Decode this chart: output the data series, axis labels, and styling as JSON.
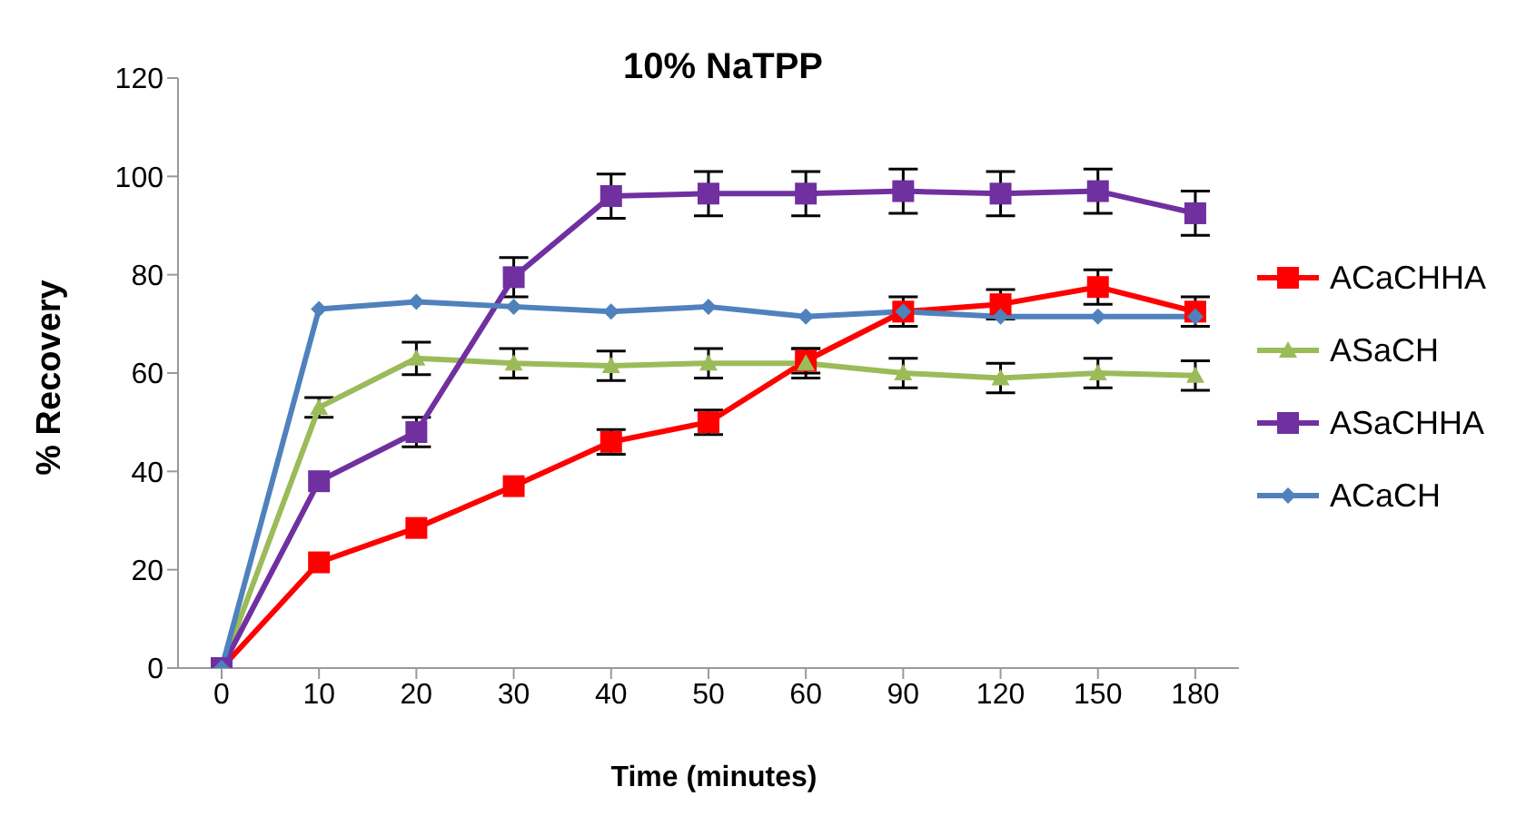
{
  "chart_data": {
    "type": "line",
    "title": "10% NaTPP",
    "xlabel": "Time (minutes)",
    "ylabel": "% Recovery",
    "categories": [
      "0",
      "10",
      "20",
      "30",
      "40",
      "50",
      "60",
      "90",
      "120",
      "150",
      "180"
    ],
    "ylim": [
      0,
      120
    ],
    "yticks": [
      0,
      20,
      40,
      60,
      80,
      100,
      120
    ],
    "grid": false,
    "legend": "right",
    "series": [
      {
        "name": "ACaCHHA",
        "color": "#ff0000",
        "marker": "square",
        "values": [
          0,
          21.5,
          28.5,
          37,
          46,
          50,
          62.5,
          72.5,
          74,
          77.5,
          72.5
        ],
        "errors": [
          null,
          null,
          null,
          null,
          2.5,
          2.5,
          2.5,
          3,
          3,
          3.5,
          3
        ]
      },
      {
        "name": "ASaCH",
        "color": "#9bbb59",
        "marker": "triangle",
        "values": [
          0,
          53,
          63,
          62,
          61.5,
          62,
          62,
          60,
          59,
          60,
          59.5
        ],
        "errors": [
          null,
          2,
          3.3,
          3,
          3,
          3,
          3,
          3,
          3,
          3,
          3
        ]
      },
      {
        "name": "ASaCHHA",
        "color": "#7030a0",
        "marker": "square",
        "values": [
          0,
          38,
          48,
          79.5,
          96,
          96.5,
          96.5,
          97,
          96.5,
          97,
          92.5
        ],
        "errors": [
          null,
          null,
          3,
          4,
          4.5,
          4.5,
          4.5,
          4.5,
          4.5,
          4.5,
          4.5
        ]
      },
      {
        "name": "ACaCH",
        "color": "#4f81bd",
        "marker": "diamond",
        "values": [
          0,
          73,
          74.5,
          73.5,
          72.5,
          73.5,
          71.5,
          72.5,
          71.5,
          71.5,
          71.5
        ]
      }
    ]
  }
}
